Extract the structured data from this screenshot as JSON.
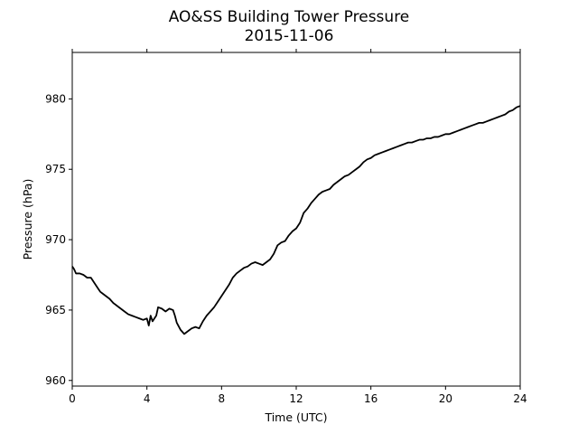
{
  "chart_data": {
    "type": "line",
    "title": "AO&SS Building Tower Pressure",
    "subtitle": "2015-11-06",
    "xlabel": "Time (UTC)",
    "ylabel": "Pressure (hPa)",
    "xlim": [
      0,
      24
    ],
    "ylim": [
      959.6,
      983.3
    ],
    "xticks": [
      0,
      4,
      8,
      12,
      16,
      20,
      24
    ],
    "yticks": [
      960,
      965,
      970,
      975,
      980
    ],
    "grid": false,
    "line_color": "#000000",
    "series": [
      {
        "x": [
          0,
          0.1,
          0.2,
          0.4,
          0.6,
          0.8,
          1.0,
          1.2,
          1.4,
          1.5,
          1.6,
          1.8,
          2.0,
          2.2,
          2.4,
          2.6,
          2.8,
          3.0,
          3.2,
          3.4,
          3.6,
          3.8,
          4.0,
          4.1,
          4.2,
          4.3,
          4.4,
          4.5,
          4.6,
          4.8,
          5.0,
          5.2,
          5.4,
          5.5,
          5.6,
          5.8,
          6.0,
          6.2,
          6.4,
          6.6,
          6.8,
          7.0,
          7.2,
          7.4,
          7.6,
          7.8,
          8.0,
          8.2,
          8.4,
          8.6,
          8.8,
          9.0,
          9.2,
          9.4,
          9.6,
          9.8,
          10.0,
          10.2,
          10.4,
          10.6,
          10.8,
          11.0,
          11.2,
          11.4,
          11.6,
          11.8,
          12.0,
          12.2,
          12.4,
          12.6,
          12.8,
          13.0,
          13.2,
          13.4,
          13.6,
          13.8,
          14.0,
          14.2,
          14.4,
          14.6,
          14.8,
          15.0,
          15.2,
          15.4,
          15.6,
          15.8,
          16.0,
          16.2,
          16.4,
          16.6,
          16.8,
          17.0,
          17.2,
          17.4,
          17.6,
          17.8,
          18.0,
          18.2,
          18.4,
          18.6,
          18.8,
          19.0,
          19.2,
          19.4,
          19.6,
          19.8,
          20.0,
          20.2,
          20.4,
          20.6,
          20.8,
          21.0,
          21.2,
          21.4,
          21.6,
          21.8,
          22.0,
          22.2,
          22.4,
          22.6,
          22.8,
          23.0,
          23.2,
          23.4,
          23.6,
          23.8,
          24.0
        ],
        "y": [
          968.1,
          967.9,
          967.6,
          967.6,
          967.5,
          967.3,
          967.3,
          966.9,
          966.5,
          966.3,
          966.2,
          966.0,
          965.8,
          965.5,
          965.3,
          965.1,
          964.9,
          964.7,
          964.6,
          964.5,
          964.4,
          964.3,
          964.4,
          963.9,
          964.6,
          964.2,
          964.4,
          964.6,
          965.2,
          965.1,
          964.9,
          965.1,
          965.0,
          964.6,
          964.1,
          963.6,
          963.3,
          963.5,
          963.7,
          963.8,
          963.7,
          964.2,
          964.6,
          964.9,
          965.2,
          965.6,
          966.0,
          966.4,
          966.8,
          967.3,
          967.6,
          967.8,
          968.0,
          968.1,
          968.3,
          968.4,
          968.3,
          968.2,
          968.4,
          968.6,
          969.0,
          969.6,
          969.8,
          969.9,
          970.3,
          970.6,
          970.8,
          971.2,
          971.9,
          972.2,
          972.6,
          972.9,
          973.2,
          973.4,
          973.5,
          973.6,
          973.9,
          974.1,
          974.3,
          974.5,
          974.6,
          974.8,
          975.0,
          975.2,
          975.5,
          975.7,
          975.8,
          976.0,
          976.1,
          976.2,
          976.3,
          976.4,
          976.5,
          976.6,
          976.7,
          976.8,
          976.9,
          976.9,
          977.0,
          977.1,
          977.1,
          977.2,
          977.2,
          977.3,
          977.3,
          977.4,
          977.5,
          977.5,
          977.6,
          977.7,
          977.8,
          977.9,
          978.0,
          978.1,
          978.2,
          978.3,
          978.3,
          978.4,
          978.5,
          978.6,
          978.7,
          978.8,
          978.9,
          979.1,
          979.2,
          979.4,
          979.5
        ]
      }
    ]
  }
}
